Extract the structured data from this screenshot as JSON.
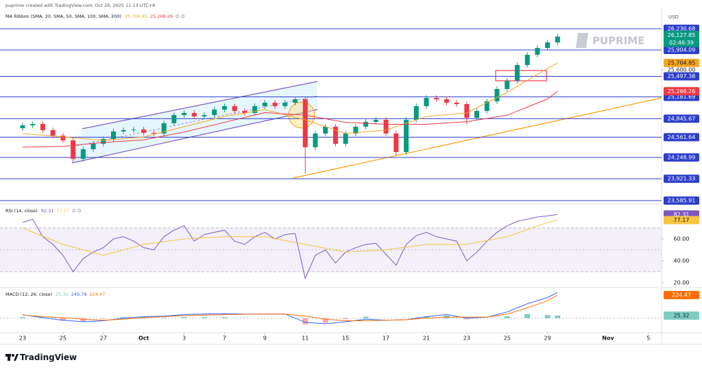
{
  "header": {
    "credit": "puprime created with TradingView.com, Oct 29, 2025 11:13 UTC+8",
    "brand": "PUPRIME",
    "footer": "TradingView",
    "currency": "USD"
  },
  "chart_data": [
    {
      "type": "candlestick",
      "title": "MA Ribbon (SMA, 20, SMA, 50, SMA, 100, SMA, 200)",
      "flags": "∅ ∅",
      "up_color": "#089981",
      "down_color": "#f23645",
      "xlim": [
        -1.12,
        31.65
      ],
      "xticks": [
        {
          "value": 0,
          "label": "23"
        },
        {
          "value": 2,
          "label": "25"
        },
        {
          "value": 4,
          "label": "27"
        },
        {
          "value": 6,
          "label": "Oct"
        },
        {
          "value": 8,
          "label": "3"
        },
        {
          "value": 10,
          "label": "7"
        },
        {
          "value": 12,
          "label": "9"
        },
        {
          "value": 14,
          "label": "11"
        },
        {
          "value": 16,
          "label": "15"
        },
        {
          "value": 18,
          "label": "17"
        },
        {
          "value": 20,
          "label": "21"
        },
        {
          "value": 22,
          "label": "23"
        },
        {
          "value": 24,
          "label": "25"
        },
        {
          "value": 26,
          "label": "29"
        },
        {
          "value": 29,
          "label": "Nov"
        },
        {
          "value": 31,
          "label": "5"
        }
      ],
      "ylim": [
        23533,
        26462
      ],
      "yticks": [
        {
          "value": 25600,
          "label": "25,600.00"
        }
      ],
      "level_color": "#2d3fc9",
      "levels": [
        {
          "value": 26230.68,
          "label": "26,230.68"
        },
        {
          "value": 25904.09,
          "label": "25,904.09"
        },
        {
          "value": 25497.38,
          "label": "25,497.38"
        },
        {
          "value": 25181.69,
          "label": "25,181.69"
        },
        {
          "value": 24845.67,
          "label": "24,845.67"
        },
        {
          "value": 24561.64,
          "label": "24,561.64"
        },
        {
          "value": 24248.99,
          "label": "24,248.99"
        },
        {
          "value": 23921.33,
          "label": "23,921.33"
        },
        {
          "value": 23585.91,
          "label": "23,585.91"
        }
      ],
      "last": {
        "value": 26127.85,
        "label": "26,127.85",
        "countdown": "02:46:39",
        "color": "#089981"
      },
      "x": [
        0,
        0.5,
        1,
        1.5,
        2,
        2.5,
        3,
        3.5,
        4,
        4.5,
        5,
        5.5,
        6,
        6.5,
        7,
        7.5,
        8,
        8.5,
        9,
        9.5,
        10,
        10.5,
        11,
        11.5,
        12,
        12.5,
        13,
        13.5,
        14,
        14.5,
        15,
        15.5,
        16,
        16.5,
        17,
        17.5,
        18,
        18.5,
        19,
        19.5,
        20,
        20.5,
        21,
        21.5,
        22,
        22.5,
        23,
        23.5,
        24,
        24.5,
        25,
        25.5,
        26,
        26.5
      ],
      "open": [
        24700,
        24744,
        24765,
        24670,
        24586,
        24512,
        24228,
        24376,
        24460,
        24534,
        24650,
        24670,
        24680,
        24628,
        24618,
        24776,
        24902,
        24934,
        24881,
        24902,
        24986,
        25039,
        24965,
        24934,
        25039,
        25092,
        25039,
        25092,
        25145,
        24407,
        24618,
        24723,
        24460,
        24618,
        24723,
        24797,
        24829,
        24618,
        24333,
        24829,
        25039,
        25166,
        25145,
        25092,
        25071,
        24860,
        24965,
        25113,
        25303,
        25430,
        25672,
        25830,
        25935,
        26020
      ],
      "high": [
        24784,
        24805,
        24805,
        24710,
        24626,
        24552,
        24416,
        24500,
        24574,
        24690,
        24710,
        24720,
        24720,
        24668,
        24816,
        24942,
        24974,
        24974,
        24942,
        25026,
        25079,
        25079,
        25005,
        25079,
        25132,
        25132,
        25132,
        25185,
        25185,
        24658,
        24763,
        24763,
        24658,
        24763,
        24837,
        24869,
        24869,
        24658,
        24869,
        25079,
        25206,
        25206,
        25185,
        25132,
        25111,
        25005,
        25153,
        25343,
        25470,
        25712,
        25870,
        25975,
        26060,
        26150
      ],
      "low": [
        24660,
        24704,
        24630,
        24546,
        24472,
        24180,
        24188,
        24336,
        24420,
        24494,
        24610,
        24630,
        24588,
        24578,
        24578,
        24736,
        24862,
        24841,
        24841,
        24862,
        24946,
        24925,
        24894,
        24894,
        24999,
        24999,
        24999,
        25052,
        24000,
        24367,
        24578,
        24420,
        24420,
        24578,
        24683,
        24757,
        24578,
        24280,
        24293,
        24789,
        24999,
        25105,
        25052,
        25031,
        24760,
        24820,
        24925,
        25073,
        25263,
        25390,
        25632,
        25790,
        25895,
        25980
      ],
      "close": [
        24744,
        24765,
        24670,
        24586,
        24512,
        24228,
        24376,
        24460,
        24534,
        24650,
        24670,
        24680,
        24628,
        24618,
        24776,
        24902,
        24934,
        24881,
        24902,
        24986,
        25039,
        24965,
        24934,
        25039,
        25092,
        25039,
        25092,
        25145,
        24407,
        24618,
        24723,
        24460,
        24618,
        24723,
        24797,
        24829,
        24618,
        24333,
        24829,
        25039,
        25166,
        25145,
        25092,
        25071,
        24860,
        24965,
        25113,
        25303,
        25430,
        25672,
        25830,
        25935,
        26020,
        26110
      ],
      "series": [
        {
          "color": "#f5a623",
          "axis_tag": true,
          "x": [
            0,
            2,
            4,
            6,
            8,
            10,
            12,
            14,
            16,
            18,
            20,
            22,
            24,
            26,
            26.5
          ],
          "values": [
            24618,
            24565,
            24512,
            24565,
            24723,
            24881,
            24986,
            24829,
            24618,
            24670,
            24881,
            24934,
            25250,
            25620,
            25704.85
          ],
          "value_labels": [
            null,
            null,
            null,
            null,
            null,
            null,
            null,
            null,
            null,
            null,
            null,
            null,
            null,
            null,
            "25,704.85"
          ]
        },
        {
          "color": "#f23645",
          "axis_tag": true,
          "x": [
            0,
            2,
            4,
            6,
            8,
            10,
            12,
            14,
            16,
            18,
            20,
            22,
            24,
            26,
            26.5
          ],
          "values": [
            24407,
            24420,
            24480,
            24520,
            24640,
            24790,
            24940,
            24900,
            24790,
            24760,
            24760,
            24800,
            24900,
            25150,
            25268.26
          ],
          "value_labels": [
            null,
            null,
            null,
            null,
            null,
            null,
            null,
            null,
            null,
            null,
            null,
            null,
            null,
            null,
            "25,268.26"
          ]
        }
      ]
    },
    {
      "type": "line",
      "title": "RSI (14, close)",
      "flags": "∅ ∅",
      "ylim": [
        15.6,
        90.6
      ],
      "band": [
        30,
        70
      ],
      "midline": 50,
      "band_color": "#7e57c2",
      "yticks": [
        {
          "value": 60,
          "label": "60.00"
        },
        {
          "value": 40,
          "label": "40.00"
        },
        {
          "value": 20,
          "label": "20.00"
        }
      ],
      "series": [
        {
          "color": "#7e57c2",
          "axis_tag": true,
          "x": [
            0,
            0.5,
            1,
            1.5,
            2,
            2.5,
            3,
            3.5,
            4,
            4.5,
            5,
            5.5,
            6,
            6.5,
            7,
            7.5,
            8,
            8.5,
            9,
            9.5,
            10,
            10.5,
            11,
            11.5,
            12,
            12.5,
            13,
            13.5,
            14,
            14.5,
            15,
            15.5,
            16,
            16.5,
            17,
            17.5,
            18,
            18.5,
            19,
            19.5,
            20,
            20.5,
            21,
            21.5,
            22,
            22.5,
            23,
            23.5,
            24,
            24.5,
            25,
            25.5,
            26,
            26.5
          ],
          "values": [
            75,
            78,
            62,
            55,
            45,
            30,
            42,
            48,
            52,
            60,
            62,
            58,
            52,
            50,
            62,
            68,
            72,
            58,
            64,
            66,
            68,
            58,
            55,
            62,
            66,
            60,
            64,
            65,
            24,
            45,
            50,
            38,
            48,
            52,
            55,
            56,
            46,
            36,
            55,
            63,
            66,
            62,
            60,
            58,
            40,
            48,
            58,
            66,
            72,
            76,
            78,
            80,
            81,
            82.31
          ],
          "value_labels": [
            null,
            null,
            null,
            null,
            null,
            null,
            null,
            null,
            null,
            null,
            null,
            null,
            null,
            null,
            null,
            null,
            null,
            null,
            null,
            null,
            null,
            null,
            null,
            null,
            null,
            null,
            null,
            null,
            null,
            null,
            null,
            null,
            null,
            null,
            null,
            null,
            null,
            null,
            null,
            null,
            null,
            null,
            null,
            null,
            null,
            null,
            null,
            null,
            null,
            null,
            null,
            null,
            null,
            "82.31"
          ]
        },
        {
          "color": "#f5c542",
          "axis_tag": true,
          "x": [
            0,
            2,
            4,
            6,
            8,
            10,
            12,
            14,
            16,
            18,
            20,
            22,
            24,
            26,
            26.5
          ],
          "values": [
            70,
            55,
            45,
            55,
            60,
            62,
            62,
            55,
            48,
            50,
            55,
            55,
            62,
            75,
            77.17
          ],
          "value_labels": [
            null,
            null,
            null,
            null,
            null,
            null,
            null,
            null,
            null,
            null,
            null,
            null,
            null,
            null,
            "77.17"
          ]
        }
      ]
    },
    {
      "type": "macd",
      "title": "MACD (12, 26, close)",
      "ylim": [
        -141,
        284
      ],
      "zero_line": 0,
      "series": [
        {
          "style": "histogram",
          "color": "#7fcdc3",
          "negative_color": "#f7a8a8",
          "axis_tag": true,
          "x": [
            0,
            1,
            2,
            3,
            4,
            5,
            6,
            7,
            8,
            9,
            10,
            11,
            12,
            13,
            14,
            15,
            16,
            17,
            18,
            19,
            20,
            21,
            22,
            23,
            24,
            25,
            26,
            26.5
          ],
          "values": [
            10,
            5,
            -25,
            -30,
            -5,
            10,
            10,
            5,
            10,
            10,
            10,
            2,
            0,
            0,
            -60,
            -45,
            -10,
            15,
            0,
            0,
            15,
            25,
            -10,
            0,
            20,
            40,
            30,
            25.32
          ],
          "value_labels": [
            null,
            null,
            null,
            null,
            null,
            null,
            null,
            null,
            null,
            null,
            null,
            null,
            null,
            null,
            null,
            null,
            null,
            null,
            null,
            null,
            null,
            null,
            null,
            null,
            null,
            null,
            null,
            "25.32"
          ]
        },
        {
          "color": "#2962ff",
          "axis_tag": false,
          "x": [
            0,
            1,
            2,
            3,
            4,
            5,
            6,
            7,
            8,
            9,
            10,
            11,
            12,
            13,
            14,
            15,
            16,
            17,
            18,
            19,
            20,
            21,
            22,
            23,
            24,
            25,
            26,
            26.5
          ],
          "values": [
            32,
            5,
            -20,
            -35,
            -25,
            0,
            15,
            20,
            35,
            40,
            45,
            40,
            40,
            40,
            -40,
            -55,
            -35,
            -10,
            -20,
            -15,
            15,
            35,
            0,
            10,
            60,
            140,
            200,
            249.79
          ],
          "value_labels": [
            null,
            null,
            null,
            null,
            null,
            null,
            null,
            null,
            null,
            null,
            null,
            null,
            null,
            null,
            null,
            null,
            null,
            null,
            null,
            null,
            null,
            null,
            null,
            null,
            null,
            null,
            null,
            "249.79"
          ]
        },
        {
          "color": "#ff6d00",
          "axis_tag": true,
          "x": [
            0,
            1,
            2,
            3,
            4,
            5,
            6,
            7,
            8,
            9,
            10,
            11,
            12,
            13,
            14,
            15,
            16,
            17,
            18,
            19,
            20,
            21,
            22,
            23,
            24,
            25,
            26,
            26.5
          ],
          "values": [
            30,
            15,
            5,
            -10,
            -20,
            -10,
            5,
            15,
            25,
            30,
            35,
            38,
            40,
            40,
            20,
            -10,
            -25,
            -25,
            -20,
            -15,
            0,
            10,
            10,
            10,
            40,
            100,
            170,
            224.47
          ],
          "value_labels": [
            null,
            null,
            null,
            null,
            null,
            null,
            null,
            null,
            null,
            null,
            null,
            null,
            null,
            null,
            null,
            null,
            null,
            null,
            null,
            null,
            null,
            null,
            null,
            null,
            null,
            null,
            null,
            "224.47"
          ]
        }
      ]
    }
  ]
}
